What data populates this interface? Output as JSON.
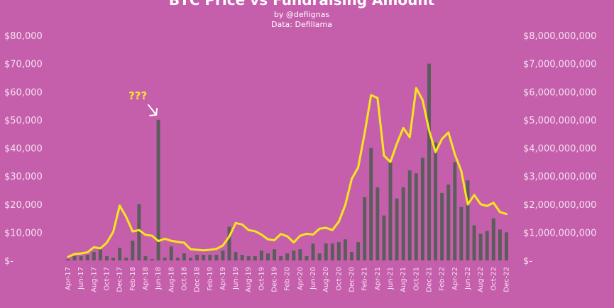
{
  "chart_data": {
    "type": "bar",
    "title": "BTC Price vs Fundraising Amount",
    "subtitle": "by @defiignas",
    "source": "Data: Defillama",
    "y_left_ticks": [
      "$-",
      "$10,000",
      "$20,000",
      "$30,000",
      "$40,000",
      "$50,000",
      "$60,000",
      "$70,000",
      "$80,000"
    ],
    "y_right_ticks": [
      "$-",
      "$1,000,000,000",
      "$2,000,000,000",
      "$3,000,000,000",
      "$4,000,000,000",
      "$5,000,000,000",
      "$6,000,000,000",
      "$7,000,000,000",
      "$8,000,000,000"
    ],
    "ylim_left": [
      0,
      80000
    ],
    "ylim_right": [
      0,
      8000000000
    ],
    "grid": false,
    "categories": [
      "Apr-17",
      "May-17",
      "Jun-17",
      "Jul-17",
      "Aug-17",
      "Sep-17",
      "Oct-17",
      "Nov-17",
      "Dec-17",
      "Jan-18",
      "Feb-18",
      "Mar-18",
      "Apr-18",
      "May-18",
      "Jun-18",
      "Jul-18",
      "Aug-18",
      "Sep-18",
      "Oct-18",
      "Nov-18",
      "Dec-18",
      "Jan-19",
      "Feb-19",
      "Mar-19",
      "Apr-19",
      "May-19",
      "Jun-19",
      "Jul-19",
      "Aug-19",
      "Sep-19",
      "Oct-19",
      "Nov-19",
      "Dec-19",
      "Jan-20",
      "Feb-20",
      "Mar-20",
      "Apr-20",
      "May-20",
      "Jun-20",
      "Jul-20",
      "Aug-20",
      "Sep-20",
      "Oct-20",
      "Nov-20",
      "Dec-20",
      "Jan-21",
      "Feb-21",
      "Mar-21",
      "Apr-21",
      "May-21",
      "Jun-21",
      "Jul-21",
      "Aug-21",
      "Sep-21",
      "Oct-21",
      "Nov-21",
      "Dec-21",
      "Jan-22",
      "Feb-22",
      "Mar-22",
      "Apr-22",
      "May-22",
      "Jun-22",
      "Jul-22",
      "Aug-22",
      "Sep-22",
      "Oct-22",
      "Nov-22",
      "Dec-22"
    ],
    "x_tick_labels": [
      "Apr-17",
      "Jun-17",
      "Aug-17",
      "Oct-17",
      "Dec-17",
      "Feb-18",
      "Apr-18",
      "Jun-18",
      "Aug-18",
      "Oct-18",
      "Dec-18",
      "Feb-19",
      "Apr-19",
      "Jun-19",
      "Aug-19",
      "Oct-19",
      "Dec-19",
      "Feb-20",
      "Apr-20",
      "Jun-20",
      "Aug-20",
      "Oct-20",
      "Dec-20",
      "Feb-21",
      "Apr-21",
      "Jun-21",
      "Aug-21",
      "Oct-21",
      "Dec-21",
      "Feb-22",
      "Apr-22",
      "Jun-22",
      "Aug-22",
      "Oct-22",
      "Dec-22"
    ],
    "series": [
      {
        "type": "bar",
        "axis": "right",
        "color": "#5c5c5c",
        "values": [
          50000000,
          150000000,
          150000000,
          200000000,
          300000000,
          400000000,
          150000000,
          100000000,
          450000000,
          100000000,
          700000000,
          2000000000,
          150000000,
          50000000,
          5000000000,
          100000000,
          500000000,
          100000000,
          250000000,
          100000000,
          200000000,
          200000000,
          200000000,
          200000000,
          350000000,
          1200000000,
          300000000,
          200000000,
          150000000,
          150000000,
          350000000,
          250000000,
          400000000,
          150000000,
          250000000,
          350000000,
          400000000,
          150000000,
          600000000,
          250000000,
          600000000,
          600000000,
          650000000,
          750000000,
          300000000,
          650000000,
          2250000000,
          4000000000,
          2600000000,
          1600000000,
          3500000000,
          2200000000,
          2600000000,
          3200000000,
          3100000000,
          3650000000,
          7000000000,
          4200000000,
          2400000000,
          2700000000,
          3500000000,
          1900000000,
          2850000000,
          1250000000,
          950000000,
          1050000000,
          1500000000,
          1100000000,
          1000000000
        ]
      },
      {
        "type": "line",
        "axis": "left",
        "color": "#f7e61c",
        "values": [
          1300,
          2300,
          2500,
          2900,
          4700,
          4300,
          6300,
          10200,
          19500,
          15500,
          10300,
          10800,
          9100,
          8800,
          6900,
          7700,
          7000,
          6600,
          6300,
          4000,
          3800,
          3600,
          3800,
          4100,
          5300,
          8500,
          13300,
          12800,
          10800,
          10400,
          9200,
          7500,
          7200,
          9400,
          8600,
          6400,
          8800,
          9500,
          9200,
          11300,
          11600,
          10800,
          13800,
          19700,
          29000,
          33100,
          45200,
          58800,
          57800,
          37300,
          35000,
          41500,
          47100,
          43800,
          61300,
          57000,
          46300,
          38500,
          43200,
          45500,
          37700,
          31800,
          19900,
          23300,
          20000,
          19400,
          20500,
          17200,
          16500
        ]
      }
    ],
    "annotations": [
      {
        "text": "???",
        "color": "#ffe033"
      }
    ]
  }
}
